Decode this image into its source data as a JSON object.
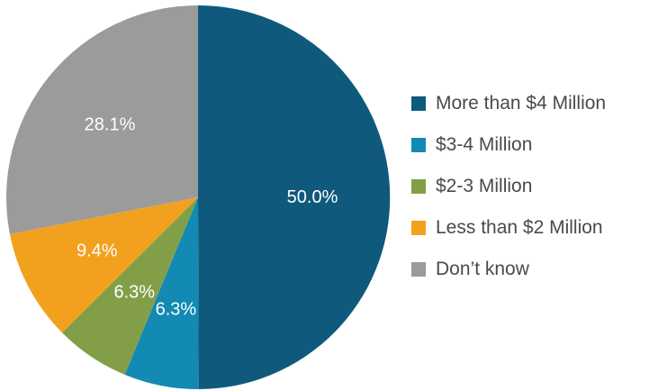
{
  "chart_data": {
    "type": "pie",
    "title": "",
    "start_angle_deg": 0,
    "direction": "clockwise",
    "legend_position": "right",
    "label_color": "#ffffff",
    "legend_text_color": "#4a4a4a",
    "slices": [
      {
        "name": "More than $4 Million",
        "value": 50.0,
        "label": "50.0%",
        "color": "#0f5a7c"
      },
      {
        "name": "$3-4 Million",
        "value": 6.3,
        "label": "6.3%",
        "color": "#128ab3"
      },
      {
        "name": "$2-3 Million",
        "value": 6.3,
        "label": "6.3%",
        "color": "#829f48"
      },
      {
        "name": "Less than $2 Million",
        "value": 9.4,
        "label": "9.4%",
        "color": "#f2a11e"
      },
      {
        "name": "Don’t know",
        "value": 28.1,
        "label": "28.1%",
        "color": "#9b9b9b"
      }
    ]
  }
}
